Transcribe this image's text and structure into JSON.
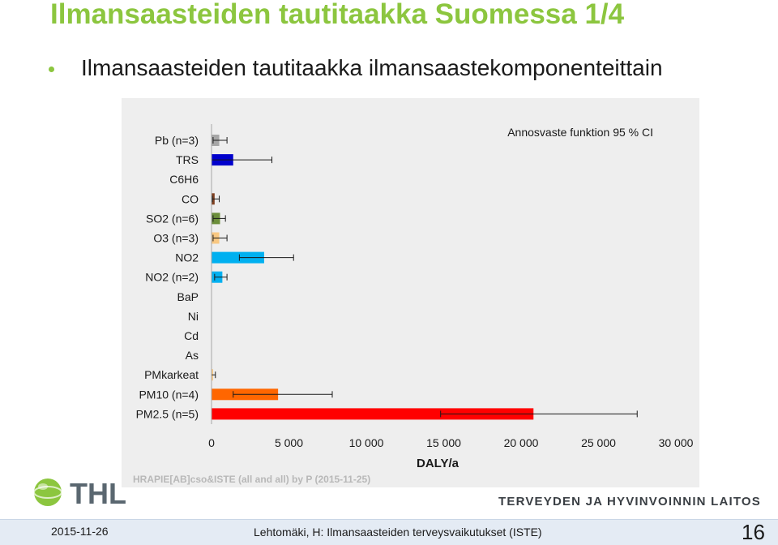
{
  "slide": {
    "title": "Ilmansaasteiden tautitaakka Suomessa 1/4",
    "bullet": "Ilmansaasteiden tautitaakka ilmansaastekomponenteittain",
    "source_note": "HRAPIE[AB]cso&ISTE (all and all) by P (2015-11-25)",
    "logo_text": "THL",
    "org_name": "TERVEYDEN JA HYVINVOINNIN LAITOS",
    "footer_date": "2015-11-26",
    "footer_text": "Lehtomäki, H: Ilmansaasteiden terveysvaikutukset (ISTE)",
    "page_number": "16"
  },
  "colors": {
    "title_green": "#8cc63f",
    "chart_bg": "#eeeeee",
    "footer_bg": "#e4ebf4"
  },
  "chart_data": {
    "type": "bar",
    "orientation": "horizontal",
    "annotation": "Annosvaste funktion 95 % CI",
    "xlabel": "DALY/a",
    "xlim": [
      0,
      30000
    ],
    "xticks": [
      0,
      5000,
      10000,
      15000,
      20000,
      25000,
      30000
    ],
    "xtick_labels": [
      "0",
      "5 000",
      "10 000",
      "15 000",
      "20 000",
      "25 000",
      "30 000"
    ],
    "grid": false,
    "categories": [
      "Pb (n=3)",
      "TRS",
      "C6H6",
      "CO",
      "SO2 (n=6)",
      "O3 (n=3)",
      "NO2",
      "NO2 (n=2)",
      "BaP",
      "Ni",
      "Cd",
      "As",
      "PMkarkeat",
      "PM10 (n=4)",
      "PM2.5 (n=5)"
    ],
    "values": [
      500,
      1400,
      0,
      200,
      550,
      500,
      3400,
      700,
      0,
      0,
      0,
      0,
      100,
      4300,
      20800
    ],
    "ci_low": [
      100,
      0,
      null,
      50,
      100,
      100,
      1800,
      200,
      null,
      null,
      null,
      null,
      0,
      1400,
      14800
    ],
    "ci_high": [
      1000,
      3900,
      null,
      500,
      900,
      1000,
      5300,
      1000,
      null,
      null,
      null,
      null,
      250,
      7800,
      27500
    ],
    "bar_colors": [
      "#a6a6a6",
      "#0000cc",
      "#808080",
      "#7f3f1f",
      "#6b8e3a",
      "#f9c882",
      "#00b0f0",
      "#00b0f0",
      "#808080",
      "#808080",
      "#808080",
      "#808080",
      "#f9c882",
      "#ff6600",
      "#ff0000"
    ]
  }
}
